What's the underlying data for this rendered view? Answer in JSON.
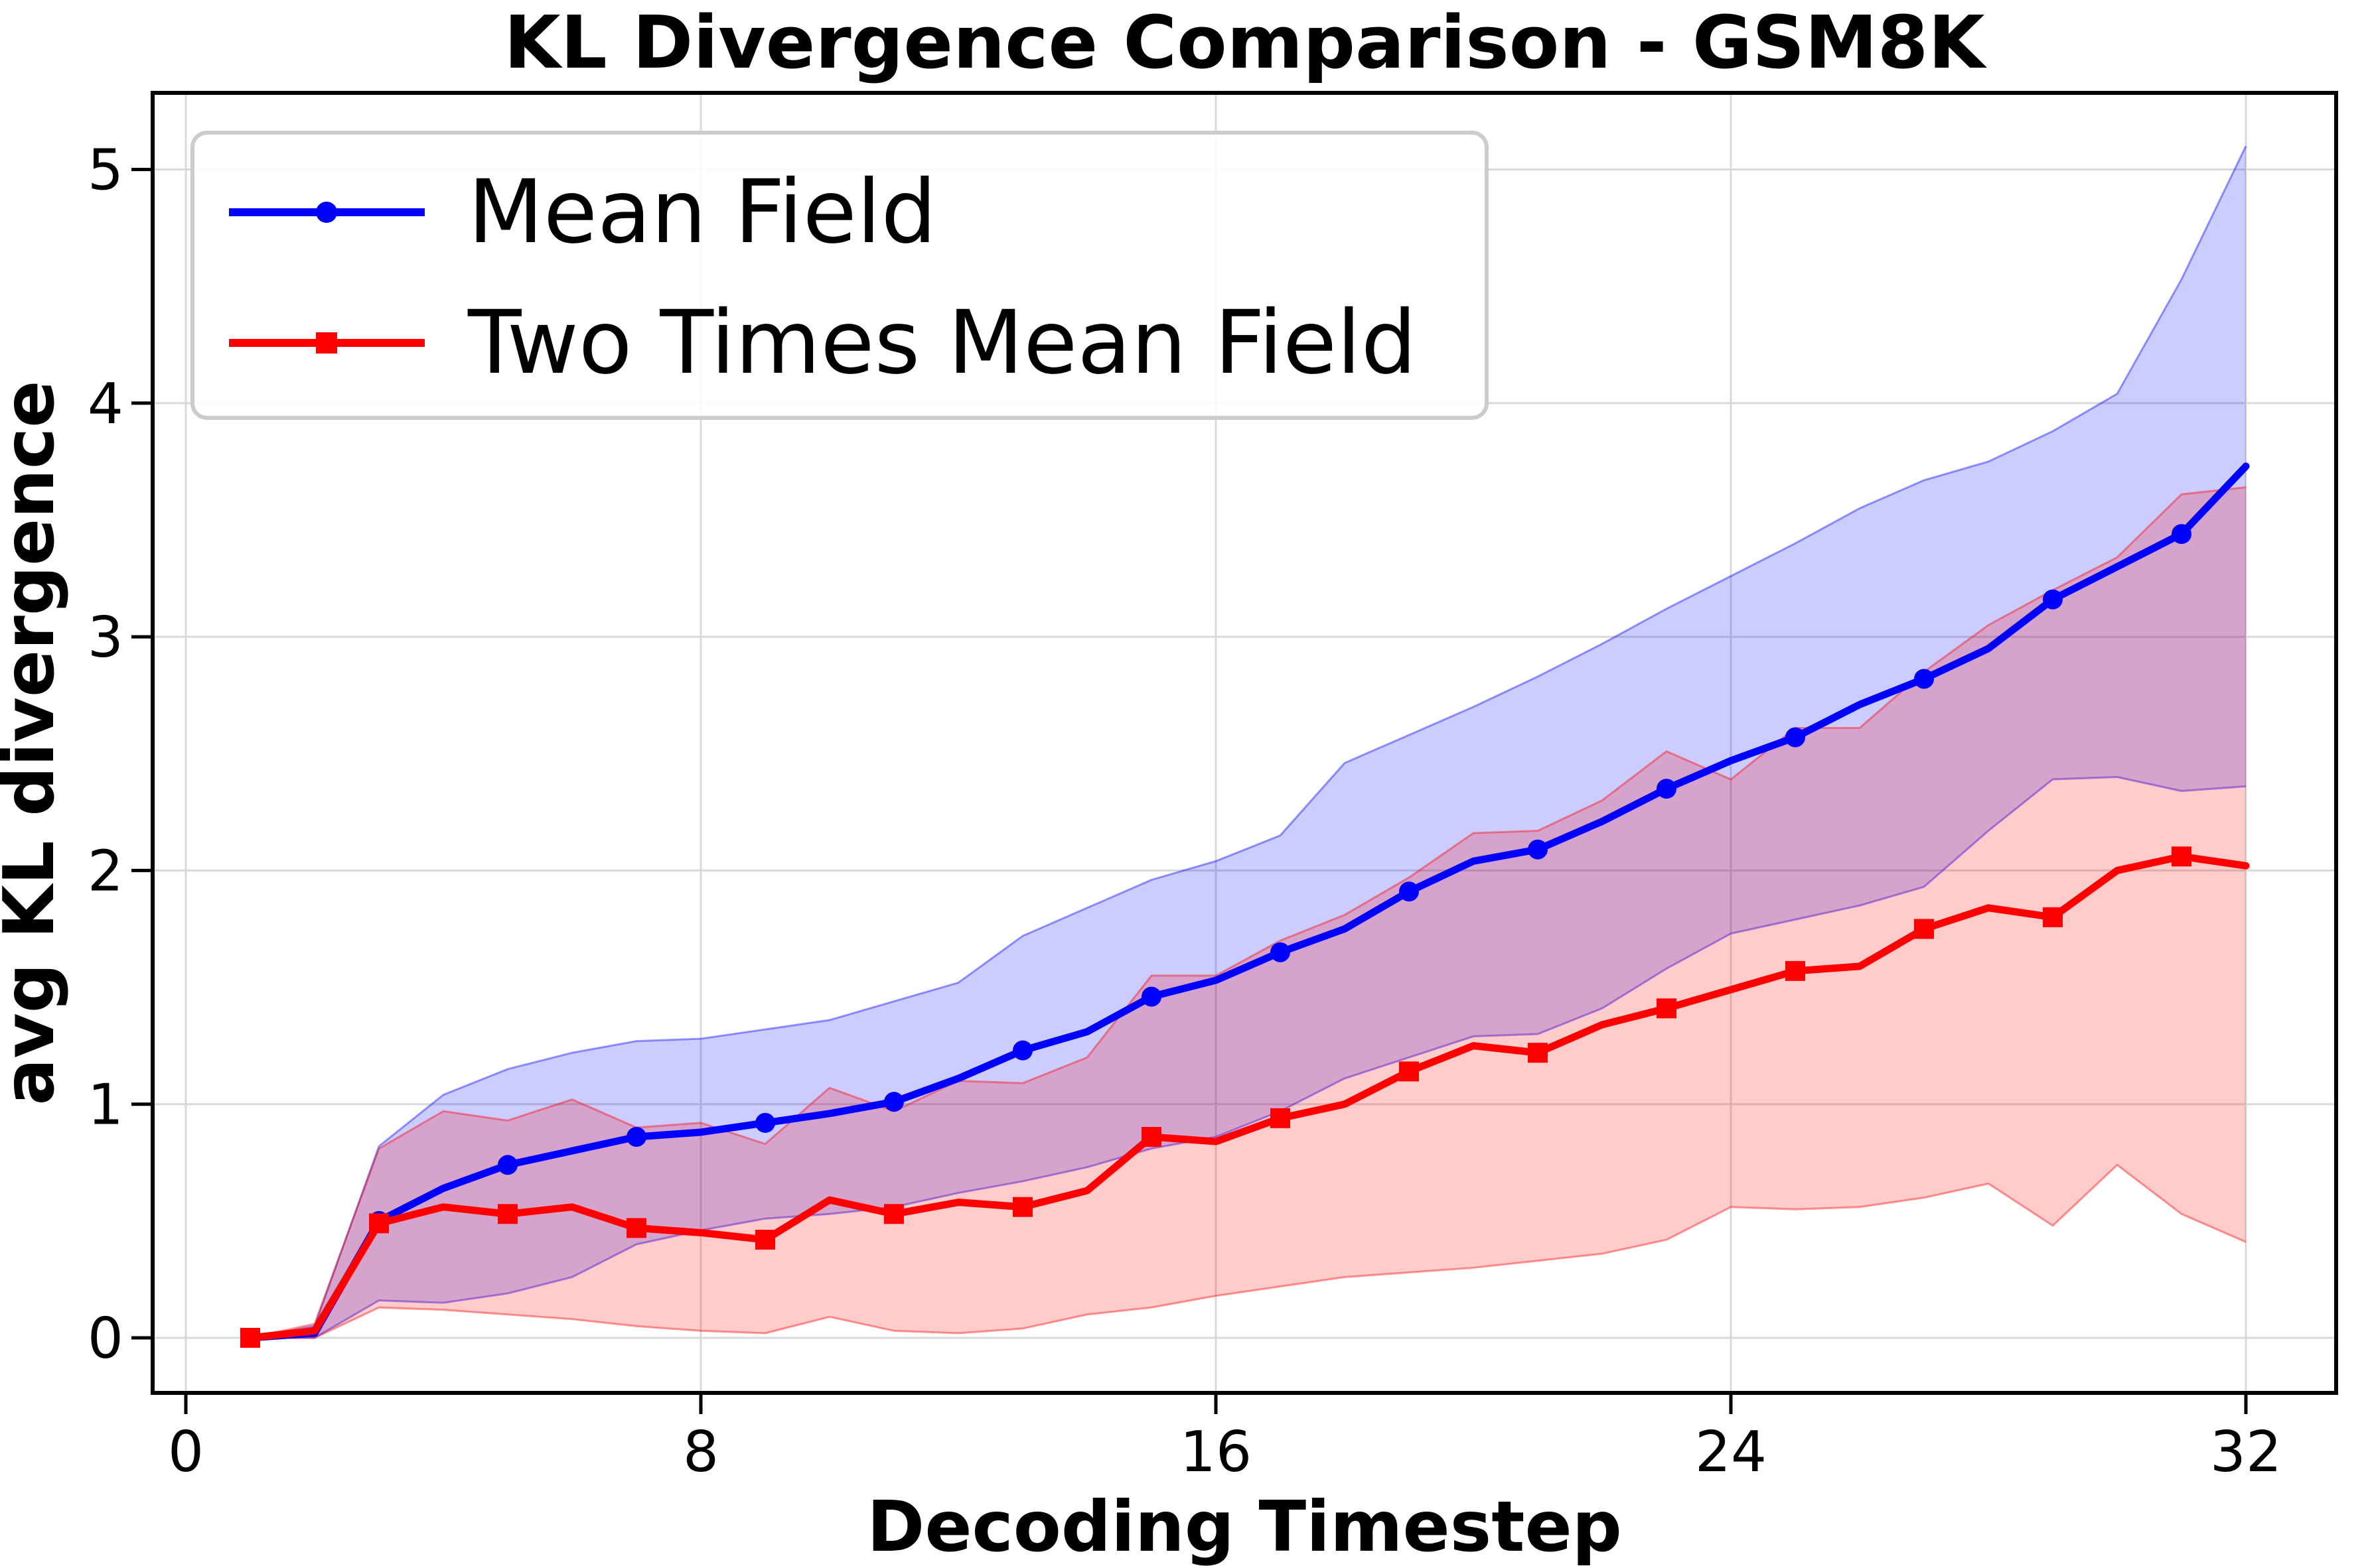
{
  "chart_data": {
    "type": "line",
    "title": "KL Divergence Comparison - GSM8K",
    "xlabel": "Decoding Timestep",
    "ylabel": "avg KL divergence",
    "grid": true,
    "legend_position": "upper left",
    "xlim": [
      -0.5,
      33.4
    ],
    "ylim": [
      -0.24,
      5.33
    ],
    "xticks": [
      0,
      8,
      16,
      24,
      32
    ],
    "yticks": [
      0,
      1,
      2,
      3,
      4,
      5
    ],
    "x": [
      1,
      2,
      3,
      4,
      5,
      6,
      7,
      8,
      9,
      10,
      11,
      12,
      13,
      14,
      15,
      16,
      17,
      18,
      19,
      20,
      21,
      22,
      23,
      24,
      25,
      26,
      27,
      28,
      29,
      30,
      31,
      32
    ],
    "marker_every": 2,
    "band_alpha": 0.2,
    "series": [
      {
        "name": "Mean Field",
        "color": "#0000ff",
        "marker": "circle",
        "values": [
          0.0,
          0.02,
          0.5,
          0.64,
          0.74,
          0.8,
          0.86,
          0.88,
          0.92,
          0.96,
          1.01,
          1.11,
          1.23,
          1.31,
          1.46,
          1.53,
          1.65,
          1.75,
          1.91,
          2.04,
          2.09,
          2.21,
          2.35,
          2.47,
          2.57,
          2.71,
          2.82,
          2.95,
          3.16,
          3.3,
          3.44,
          3.73
        ],
        "upper": [
          0.0,
          0.05,
          0.82,
          1.04,
          1.15,
          1.22,
          1.27,
          1.28,
          1.32,
          1.36,
          1.44,
          1.52,
          1.72,
          1.84,
          1.96,
          2.04,
          2.15,
          2.46,
          2.58,
          2.7,
          2.83,
          2.97,
          3.12,
          3.26,
          3.4,
          3.55,
          3.67,
          3.75,
          3.88,
          4.04,
          4.53,
          5.1
        ],
        "lower": [
          0.0,
          0.0,
          0.16,
          0.15,
          0.19,
          0.26,
          0.4,
          0.46,
          0.51,
          0.53,
          0.56,
          0.62,
          0.67,
          0.73,
          0.81,
          0.86,
          0.97,
          1.11,
          1.2,
          1.29,
          1.3,
          1.41,
          1.58,
          1.73,
          1.79,
          1.85,
          1.93,
          2.17,
          2.39,
          2.4,
          2.34,
          2.36
        ]
      },
      {
        "name": "Two Times Mean Field",
        "color": "#ff0000",
        "marker": "square",
        "values": [
          0.0,
          0.03,
          0.49,
          0.56,
          0.53,
          0.56,
          0.47,
          0.45,
          0.42,
          0.59,
          0.53,
          0.58,
          0.56,
          0.63,
          0.86,
          0.84,
          0.94,
          1.0,
          1.14,
          1.25,
          1.22,
          1.34,
          1.41,
          1.49,
          1.57,
          1.59,
          1.75,
          1.84,
          1.8,
          2.0,
          2.06,
          2.02
        ],
        "upper": [
          0.0,
          0.06,
          0.81,
          0.97,
          0.93,
          1.02,
          0.9,
          0.92,
          0.83,
          1.07,
          0.97,
          1.1,
          1.09,
          1.2,
          1.55,
          1.55,
          1.7,
          1.81,
          1.97,
          2.16,
          2.17,
          2.3,
          2.51,
          2.39,
          2.61,
          2.61,
          2.85,
          3.05,
          3.2,
          3.34,
          3.61,
          3.64
        ],
        "lower": [
          0.0,
          0.0,
          0.13,
          0.12,
          0.1,
          0.08,
          0.05,
          0.03,
          0.02,
          0.09,
          0.03,
          0.02,
          0.04,
          0.1,
          0.13,
          0.18,
          0.22,
          0.26,
          0.28,
          0.3,
          0.33,
          0.36,
          0.42,
          0.56,
          0.55,
          0.56,
          0.6,
          0.66,
          0.48,
          0.74,
          0.53,
          0.41
        ]
      }
    ]
  },
  "legend": {
    "items": [
      {
        "label": "Mean Field",
        "color": "#0000ff",
        "marker": "circle"
      },
      {
        "label": "Two Times Mean Field",
        "color": "#ff0000",
        "marker": "square"
      }
    ]
  },
  "colors": {
    "grid": "#d9d9d9",
    "spine": "#000000",
    "legend_border": "#cccccc",
    "background": "#ffffff"
  }
}
